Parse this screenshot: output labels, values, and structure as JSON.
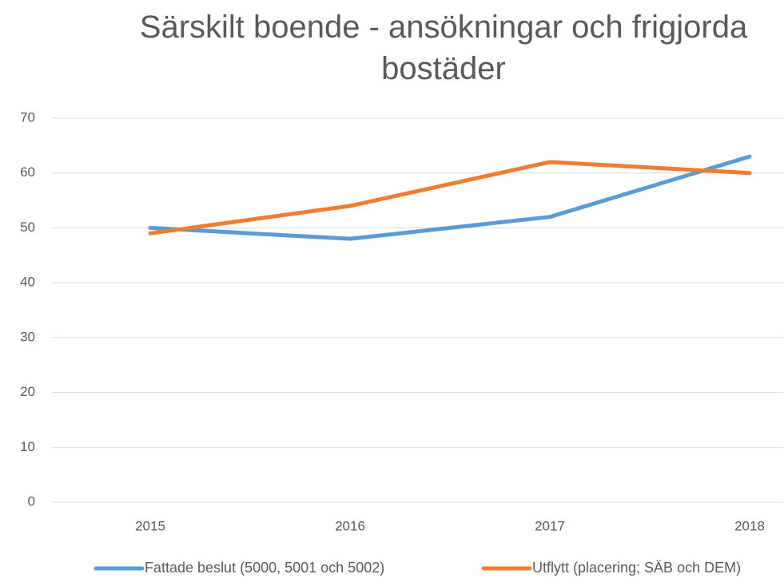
{
  "chart_data": {
    "type": "line",
    "title": "Särskilt boende - ansökningar och frigjorda bostäder",
    "categories": [
      "2015",
      "2016",
      "2017",
      "2018"
    ],
    "series": [
      {
        "name": "Fattade beslut (5000, 5001 och 5002)",
        "color": "#5b9bd5",
        "values": [
          50,
          48,
          52,
          63
        ]
      },
      {
        "name": "Utflytt (placering; SÄB och DEM)",
        "color": "#ed7d31",
        "values": [
          49,
          54,
          62,
          60
        ]
      }
    ],
    "ylim": [
      0,
      70
    ],
    "yticks": [
      0,
      10,
      20,
      30,
      40,
      50,
      60,
      70
    ],
    "grid": true,
    "legend": "bottom"
  }
}
